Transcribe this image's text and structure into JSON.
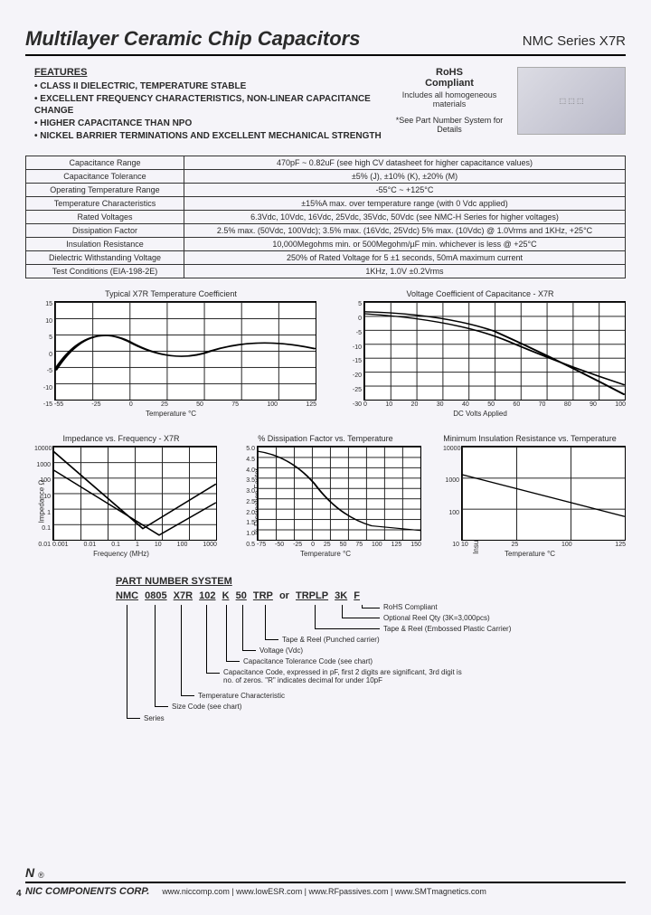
{
  "header": {
    "title": "Multilayer Ceramic Chip Capacitors",
    "subtitle": "NMC Series X7R"
  },
  "features": {
    "heading": "FEATURES",
    "items": [
      "CLASS II DIELECTRIC, TEMPERATURE STABLE",
      "EXCELLENT FREQUENCY CHARACTERISTICS, NON-LINEAR CAPACITANCE CHANGE",
      "HIGHER CAPACITANCE THAN NPO",
      "NICKEL BARRIER TERMINATIONS AND EXCELLENT MECHANICAL STRENGTH"
    ]
  },
  "rohs": {
    "title": "RoHS",
    "sub": "Compliant",
    "includes": "Includes all homogeneous materials",
    "note": "*See Part Number System for Details"
  },
  "spec_table": {
    "rows": [
      [
        "Capacitance Range",
        "470pF ~ 0.82uF (see high CV datasheet for higher capacitance values)"
      ],
      [
        "Capacitance Tolerance",
        "±5% (J), ±10% (K), ±20% (M)"
      ],
      [
        "Operating Temperature Range",
        "-55°C ~ +125°C"
      ],
      [
        "Temperature Characteristics",
        "±15%A max. over temperature range (with 0 Vdc applied)"
      ],
      [
        "Rated Voltages",
        "6.3Vdc, 10Vdc, 16Vdc, 25Vdc, 35Vdc, 50Vdc (see NMC-H Series for higher voltages)"
      ],
      [
        "Dissipation Factor",
        "2.5% max. (50Vdc, 100Vdc); 3.5% max. (16Vdc, 25Vdc) 5% max. (10Vdc) @ 1.0Vrms and 1KHz, +25°C"
      ],
      [
        "Insulation Resistance",
        "10,000Megohms min. or 500Megohm/µF min. whichever is less @ +25°C"
      ],
      [
        "Dielectric Withstanding Voltage",
        "250% of Rated Voltage for 5 ±1 seconds, 50mA maximum current"
      ],
      [
        "Test Conditions (EIA-198-2E)",
        "1KHz, 1.0V ±0.2Vrms"
      ]
    ]
  },
  "charts": {
    "temp_coef": {
      "title": "Typical X7R Temperature Coefficient",
      "ylabel": "% Capacitance Change",
      "xlabel": "Temperature °C",
      "yticks": [
        "15",
        "10",
        "5",
        "0",
        "-5",
        "-10",
        "-15"
      ],
      "xticks": [
        "-55",
        "-25",
        "0",
        "25",
        "50",
        "75",
        "100",
        "125"
      ],
      "grid_cols": 7,
      "grid_rows": 6
    },
    "volt_coef": {
      "title": "Voltage Coefficient of Capacitance - X7R",
      "ylabel": "% Capacitance Change",
      "xlabel": "DC Volts Applied",
      "yticks": [
        "5",
        "0",
        "-5",
        "-10",
        "-15",
        "-20",
        "-25",
        "-30"
      ],
      "xticks": [
        "0",
        "10",
        "20",
        "30",
        "40",
        "50",
        "60",
        "70",
        "80",
        "90",
        "100"
      ],
      "grid_cols": 10,
      "grid_rows": 7
    },
    "impedance": {
      "title": "Impedance vs. Frequency - X7R",
      "ylabel": "Impedance Ω",
      "xlabel": "Frequency (MHz)",
      "yticks": [
        "10000",
        "1000",
        "100",
        "10",
        "1",
        "0.1",
        "0.01"
      ],
      "xticks": [
        "0.001",
        "0.01",
        "0.1",
        "1",
        "10",
        "100",
        "1000"
      ],
      "grid_cols": 6,
      "grid_rows": 6
    },
    "dissipation": {
      "title": "% Dissipation Factor vs. Temperature",
      "ylabel": "% Dissipation Factor",
      "xlabel": "Temperature °C",
      "yticks": [
        "5.0",
        "4.5",
        "4.0",
        "3.5",
        "3.0",
        "2.5",
        "2.0",
        "1.5",
        "1.0",
        "0.5"
      ],
      "xticks": [
        "-75",
        "-50",
        "-25",
        "0",
        "25",
        "50",
        "75",
        "100",
        "125",
        "150"
      ],
      "grid_cols": 9,
      "grid_rows": 9
    },
    "insulation": {
      "title": "Minimum Insulation Resistance vs. Temperature",
      "ylabel": "Insulation Resistance (Ω Farads)",
      "xlabel": "Temperature °C",
      "yticks": [
        "10000",
        "1000",
        "100",
        "10"
      ],
      "xticks": [
        "10",
        "25",
        "100",
        "125"
      ],
      "grid_cols": 3,
      "grid_rows": 3
    }
  },
  "pns": {
    "heading": "PART NUMBER SYSTEM",
    "segments": [
      "NMC",
      "0805",
      "X7R",
      "102",
      "K",
      "50",
      "TRP"
    ],
    "or": "or",
    "alt1": "TRPLP",
    "alt2": "3K",
    "alt3": "F",
    "labels": [
      "RoHS Compliant",
      "Optional Reel Qty (3K=3,000pcs)",
      "Tape & Reel (Embossed Plastic Carrier)",
      "Tape & Reel (Punched carrier)",
      "Voltage (Vdc)",
      "Capacitance Tolerance Code (see chart)",
      "Capacitance Code, expressed in pF, first 2 digits are significant, 3rd digit is no. of zeros. \"R\" indicates decimal for under 10pF",
      "Temperature Characteristic",
      "Size Code (see chart)",
      "Series"
    ]
  },
  "footer": {
    "corp": "NIC COMPONENTS CORP.",
    "urls": "www.niccomp.com  |  www.lowESR.com  |  www.RFpassives.com  |  www.SMTmagnetics.com",
    "page": "4"
  }
}
